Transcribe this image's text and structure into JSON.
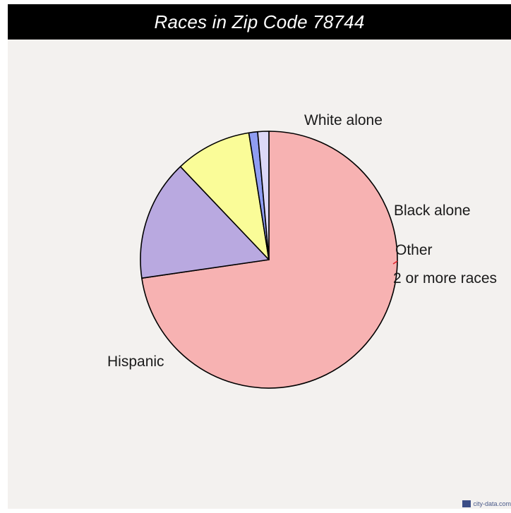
{
  "chart_data": {
    "type": "pie",
    "title": "Races in Zip Code 78744",
    "slices": [
      {
        "label": "Hispanic",
        "value": 72.7,
        "color": "#f7b2b2"
      },
      {
        "label": "White alone",
        "value": 15.2,
        "color": "#b9a9e0"
      },
      {
        "label": "Black alone",
        "value": 9.6,
        "color": "#fafc98"
      },
      {
        "label": "Other",
        "value": 1.1,
        "color": "#8f9df2"
      },
      {
        "label": "2 or more races",
        "value": 1.4,
        "color": "#dcd8f7"
      }
    ],
    "start_angle_deg": 90,
    "direction": "clockwise"
  },
  "watermark": "city-data.com",
  "colors": {
    "background": "#f3f1ef",
    "title_bar": "#000000",
    "title_text": "#ffffff",
    "slice_border": "#000000"
  }
}
